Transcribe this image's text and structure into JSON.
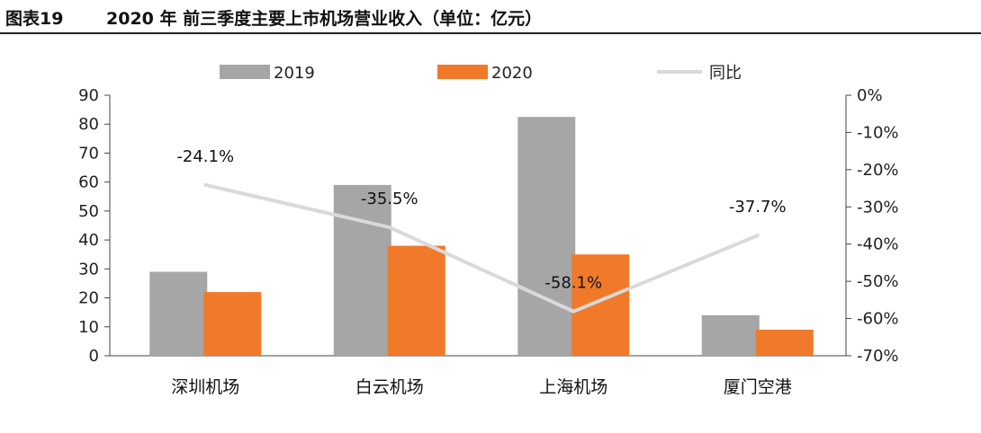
{
  "figure": {
    "label": "图表19",
    "title": "2020 年 前三季度主要上市机场营业收入（单位：亿元）"
  },
  "chart_data": {
    "type": "bar",
    "categories": [
      "深圳机场",
      "白云机场",
      "上海机场",
      "厦门空港"
    ],
    "series": [
      {
        "name": "2019",
        "kind": "bar",
        "axis": "left",
        "color": "#a6a6a6",
        "values": [
          29,
          59,
          82.5,
          14
        ]
      },
      {
        "name": "2020",
        "kind": "bar",
        "axis": "left",
        "color": "#f07a2a",
        "values": [
          22,
          38,
          35,
          9
        ]
      },
      {
        "name": "同比",
        "kind": "line",
        "axis": "right",
        "color": "#d9d9d9",
        "values": [
          -24.1,
          -35.5,
          -58.1,
          -37.7
        ],
        "labels": [
          "-24.1%",
          "-35.5%",
          "-58.1%",
          "-37.7%"
        ]
      }
    ],
    "ylim_left": [
      0,
      90
    ],
    "ylim_right": [
      -70,
      0
    ],
    "yticks_left": [
      "0",
      "10",
      "20",
      "30",
      "40",
      "50",
      "60",
      "70",
      "80",
      "90"
    ],
    "yticks_right": [
      "0%",
      "-10%",
      "-20%",
      "-30%",
      "-40%",
      "-50%",
      "-60%",
      "-70%"
    ],
    "legend_position": "top",
    "grid": false
  }
}
